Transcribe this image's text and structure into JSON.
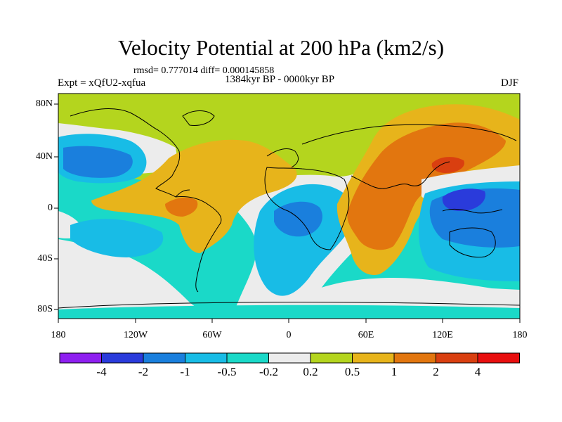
{
  "title": "Velocity Potential at 200 hPa (km2/s)",
  "stats": "rmsd= 0.777014  diff= 0.000145858",
  "expt": "Expt = xQfU2-xqfua",
  "period": "1384kyr BP - 0000kyr BP",
  "season": "DJF",
  "lat_ticks": [
    "80N",
    "40N",
    "0",
    "40S",
    "80S"
  ],
  "lon_ticks": [
    "180",
    "120W",
    "60W",
    "0",
    "60E",
    "120E",
    "180"
  ],
  "colorbar": {
    "labels": [
      "-4",
      "-2",
      "-1",
      "-0.5",
      "-0.2",
      "0.2",
      "0.5",
      "1",
      "2",
      "4"
    ],
    "colors": [
      "#8e1ff0",
      "#2a3bdb",
      "#1a7fdd",
      "#18bce6",
      "#1ad9c8",
      "#ececec",
      "#b4d51e",
      "#e7b41b",
      "#e2760f",
      "#d93f10",
      "#e80f0f"
    ]
  }
}
